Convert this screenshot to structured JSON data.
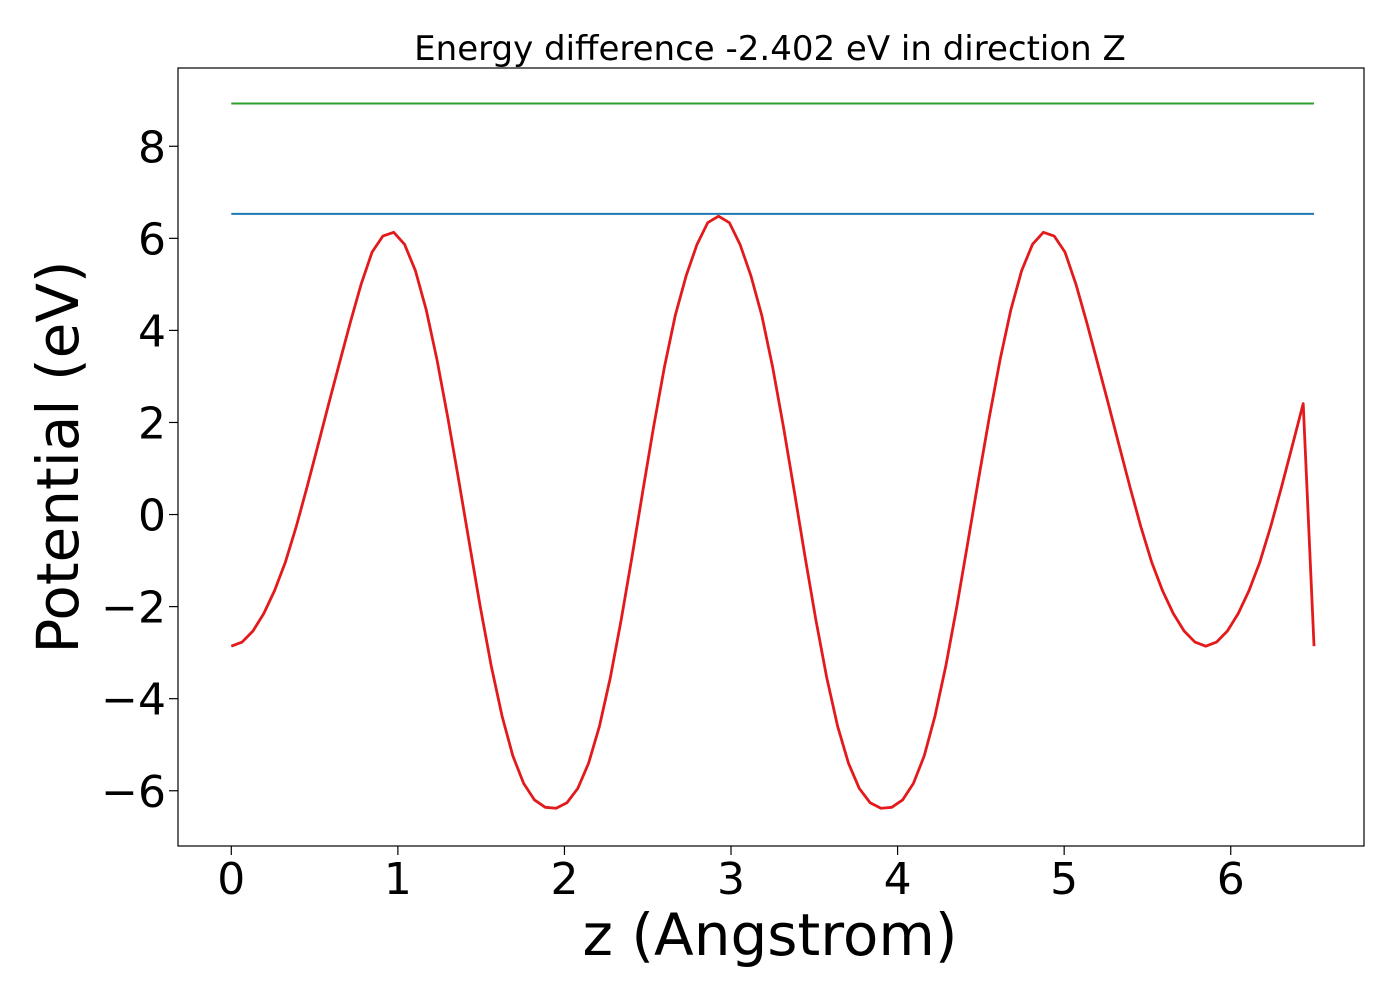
{
  "chart_data": {
    "type": "line",
    "title": "Energy difference -2.402 eV in direction Z",
    "xlabel": "z (Angstrom)",
    "ylabel": "Potential (eV)",
    "xlim": [
      -0.32,
      6.8
    ],
    "ylim": [
      -7.2,
      9.7
    ],
    "xticks": [
      0,
      1,
      2,
      3,
      4,
      5,
      6
    ],
    "xtick_labels": [
      "0",
      "1",
      "2",
      "3",
      "4",
      "5",
      "6"
    ],
    "yticks": [
      -6,
      -4,
      -2,
      0,
      2,
      4,
      6,
      8
    ],
    "ytick_labels": [
      "−6",
      "−4",
      "−2",
      "0",
      "2",
      "4",
      "6",
      "8"
    ],
    "grid": false,
    "legend": false,
    "series": [
      {
        "kind": "curve",
        "color": "#e31a1c",
        "x": [
          0.0,
          0.065,
          0.13,
          0.195,
          0.26,
          0.325,
          0.39,
          0.455,
          0.52,
          0.585,
          0.65,
          0.715,
          0.78,
          0.845,
          0.91,
          0.975,
          1.04,
          1.105,
          1.17,
          1.235,
          1.3,
          1.365,
          1.43,
          1.495,
          1.56,
          1.625,
          1.69,
          1.755,
          1.82,
          1.885,
          1.95,
          2.015,
          2.08,
          2.145,
          2.21,
          2.275,
          2.34,
          2.405,
          2.47,
          2.535,
          2.6,
          2.665,
          2.73,
          2.795,
          2.86,
          2.925,
          2.99,
          3.055,
          3.12,
          3.185,
          3.25,
          3.315,
          3.38,
          3.445,
          3.51,
          3.575,
          3.64,
          3.705,
          3.77,
          3.835,
          3.9,
          3.965,
          4.03,
          4.095,
          4.16,
          4.225,
          4.29,
          4.355,
          4.42,
          4.485,
          4.55,
          4.615,
          4.68,
          4.745,
          4.81,
          4.875,
          4.94,
          5.005,
          5.07,
          5.135,
          5.2,
          5.265,
          5.33,
          5.395,
          5.46,
          5.525,
          5.59,
          5.655,
          5.72,
          5.785,
          5.85,
          5.915,
          5.98,
          6.045,
          6.11,
          6.175,
          6.24,
          6.305,
          6.37,
          6.435,
          6.5
        ],
        "y": [
          -2.86,
          -2.77,
          -2.53,
          -2.15,
          -1.65,
          -1.03,
          -0.26,
          0.6,
          1.5,
          2.41,
          3.3,
          4.18,
          5.01,
          5.7,
          6.05,
          6.13,
          5.87,
          5.3,
          4.45,
          3.36,
          2.1,
          0.75,
          -0.64,
          -2.01,
          -3.28,
          -4.37,
          -5.24,
          -5.84,
          -6.2,
          -6.36,
          -6.38,
          -6.26,
          -5.95,
          -5.4,
          -4.6,
          -3.55,
          -2.3,
          -0.93,
          0.5,
          1.9,
          3.2,
          4.32,
          5.18,
          5.86,
          6.34,
          6.48,
          6.34,
          5.86,
          5.18,
          4.32,
          3.2,
          1.9,
          0.5,
          -0.93,
          -2.3,
          -3.55,
          -4.6,
          -5.4,
          -5.95,
          -6.26,
          -6.38,
          -6.36,
          -6.2,
          -5.84,
          -5.24,
          -4.37,
          -3.28,
          -2.01,
          -0.64,
          0.75,
          2.1,
          3.36,
          4.45,
          5.3,
          5.87,
          6.13,
          6.05,
          5.7,
          5.01,
          4.18,
          3.3,
          2.41,
          1.5,
          0.6,
          -0.26,
          -1.03,
          -1.65,
          -2.15,
          -2.53,
          -2.77,
          -2.86,
          -2.77,
          -2.53,
          -2.15,
          -1.65,
          -1.03,
          -0.26,
          0.6,
          1.5,
          2.41,
          -2.86
        ]
      },
      {
        "kind": "hline",
        "color": "#1f77b4",
        "x": [
          0.0,
          6.5
        ],
        "y": [
          6.53,
          6.53
        ]
      },
      {
        "kind": "hline",
        "color": "#2ca02c",
        "x": [
          0.0,
          6.5
        ],
        "y": [
          8.93,
          8.93
        ]
      }
    ]
  }
}
